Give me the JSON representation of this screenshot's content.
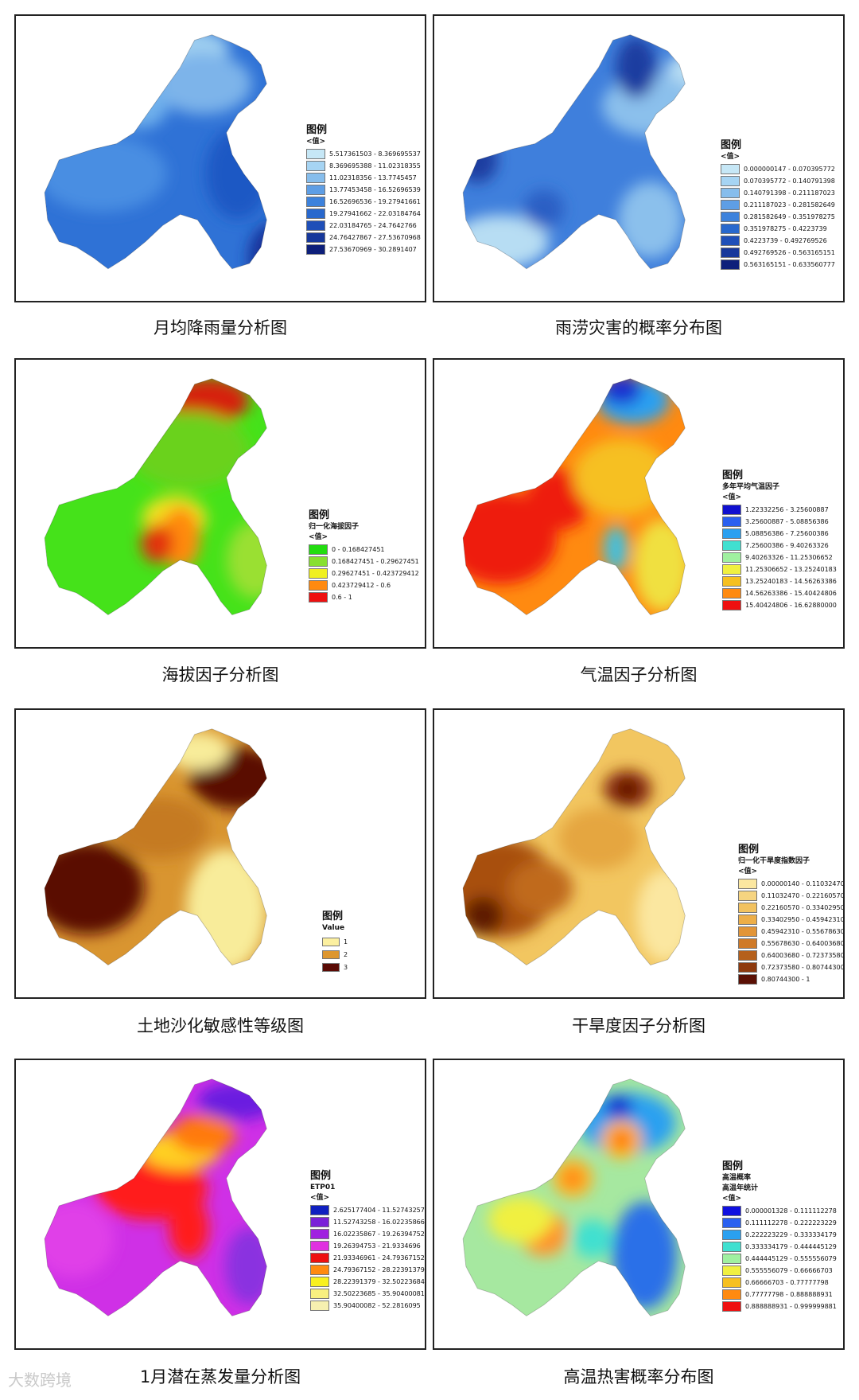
{
  "watermark": "大数跨境",
  "panels": [
    {
      "id": "p1",
      "caption": "月均降雨量分析图",
      "legend_title": "图例",
      "legend_sub": "<值>",
      "base": "#2f72d6",
      "blobs": [
        [
          "#9fcff0",
          0.55,
          0.09,
          0.1,
          0.05
        ],
        [
          "#7db4ea",
          0.6,
          0.22,
          0.12,
          0.08
        ],
        [
          "#4a8ee2",
          0.25,
          0.55,
          0.16,
          0.1
        ],
        [
          "#1f58c4",
          0.72,
          0.55,
          0.08,
          0.12
        ],
        [
          "#13309a",
          0.84,
          0.86,
          0.06,
          0.09
        ],
        [
          "#6fb0ec",
          0.38,
          0.3,
          0.07,
          0.06
        ]
      ],
      "legend": [
        {
          "color": "#c6e7f6",
          "label": "5.517361503 - 8.369695537"
        },
        {
          "color": "#a6d4f3",
          "label": "8.369695388 - 11.02318355"
        },
        {
          "color": "#86bdec",
          "label": "11.02318356 - 13.7745457"
        },
        {
          "color": "#5e9ee5",
          "label": "13.77453458 - 16.52696539"
        },
        {
          "color": "#3d82dc",
          "label": "16.52696536 - 19.27941661"
        },
        {
          "color": "#2868cd",
          "label": "19.27941662 - 22.03184764"
        },
        {
          "color": "#1f4fb8",
          "label": "22.03184765 - 24.7642766"
        },
        {
          "color": "#17389b",
          "label": "24.76427867 - 27.53670968"
        },
        {
          "color": "#0d1f7a",
          "label": "27.53670969 - 30.2891407"
        }
      ]
    },
    {
      "id": "p2",
      "caption": "雨涝灾害的概率分布图",
      "legend_title": "图例",
      "legend_sub": "<值>",
      "base": "#3f7fdc",
      "blobs": [
        [
          "#b7ddf3",
          0.82,
          0.18,
          0.05,
          0.05
        ],
        [
          "#8bc0ec",
          0.7,
          0.3,
          0.12,
          0.08
        ],
        [
          "#b7ddf3",
          0.18,
          0.8,
          0.12,
          0.07
        ],
        [
          "#2a5fc4",
          0.33,
          0.68,
          0.05,
          0.05
        ],
        [
          "#1b3ea0",
          0.1,
          0.5,
          0.05,
          0.06
        ],
        [
          "#1b3ea0",
          0.65,
          0.16,
          0.05,
          0.08
        ],
        [
          "#8bc0ec",
          0.7,
          0.72,
          0.08,
          0.1
        ]
      ],
      "legend": [
        {
          "color": "#c6e7f6",
          "label": "0.000000147 - 0.070395772"
        },
        {
          "color": "#a6d4f3",
          "label": "0.070395772 - 0.140791398"
        },
        {
          "color": "#86bdec",
          "label": "0.140791398 - 0.211187023"
        },
        {
          "color": "#5e9ee5",
          "label": "0.211187023 - 0.281582649"
        },
        {
          "color": "#3d82dc",
          "label": "0.281582649 - 0.351978275"
        },
        {
          "color": "#2868cd",
          "label": "0.351978275 - 0.4223739"
        },
        {
          "color": "#1f4fb8",
          "label": "0.4223739 - 0.492769526"
        },
        {
          "color": "#17389b",
          "label": "0.492769526 - 0.563165151"
        },
        {
          "color": "#0d1f7a",
          "label": "0.563165151 - 0.633560777"
        }
      ]
    },
    {
      "id": "p3",
      "caption": "海拔因子分析图",
      "legend_title": "图例",
      "legend_sub": "归一化海拔因子",
      "legend_sub2": "<值>",
      "base": "#45e21a",
      "blobs": [
        [
          "#d62010",
          0.62,
          0.12,
          0.1,
          0.06
        ],
        [
          "#6ad21a",
          0.55,
          0.3,
          0.15,
          0.1
        ],
        [
          "#f0e020",
          0.5,
          0.55,
          0.08,
          0.06
        ],
        [
          "#ff8a10",
          0.52,
          0.62,
          0.05,
          0.08
        ],
        [
          "#e23010",
          0.44,
          0.64,
          0.04,
          0.05
        ],
        [
          "#9ae030",
          0.78,
          0.7,
          0.07,
          0.1
        ]
      ],
      "legend": [
        {
          "color": "#22dd10",
          "label": "0 - 0.168427451"
        },
        {
          "color": "#88e030",
          "label": "0.168427451 - 0.29627451"
        },
        {
          "color": "#f0f020",
          "label": "0.29627451 - 0.423729412"
        },
        {
          "color": "#ff8a10",
          "label": "0.423729412 - 0.6"
        },
        {
          "color": "#ee1010",
          "label": "0.6 - 1"
        }
      ]
    },
    {
      "id": "p4",
      "caption": "气温因子分析图",
      "legend_title": "图例",
      "legend_sub": "多年平均气温因子",
      "legend_sub2": "<值>",
      "base": "#ff8a10",
      "blobs": [
        [
          "#ee1a10",
          0.18,
          0.62,
          0.14,
          0.12
        ],
        [
          "#ee1a10",
          0.38,
          0.48,
          0.08,
          0.08
        ],
        [
          "#f6c020",
          0.6,
          0.4,
          0.12,
          0.1
        ],
        [
          "#2aa0f0",
          0.64,
          0.12,
          0.09,
          0.06
        ],
        [
          "#1a30d0",
          0.6,
          0.08,
          0.05,
          0.04
        ],
        [
          "#f0e040",
          0.74,
          0.72,
          0.07,
          0.12
        ],
        [
          "#40c0e0",
          0.58,
          0.66,
          0.03,
          0.06
        ]
      ],
      "legend": [
        {
          "color": "#1010d0",
          "label": "1.22332256 - 3.25600887"
        },
        {
          "color": "#2a60f0",
          "label": "3.25600887 - 5.08856386"
        },
        {
          "color": "#2aa0f0",
          "label": "5.08856386 - 7.25600386"
        },
        {
          "color": "#40e0d0",
          "label": "7.25600386 - 9.40263326"
        },
        {
          "color": "#a0f0a0",
          "label": "9.40263326 - 11.25306652"
        },
        {
          "color": "#f0f040",
          "label": "11.25306652 - 13.25240183"
        },
        {
          "color": "#f6c020",
          "label": "13.25240183 - 14.56263386"
        },
        {
          "color": "#ff8a10",
          "label": "14.56263386 - 15.40424806"
        },
        {
          "color": "#ee1010",
          "label": "15.40424806 - 16.62880000"
        }
      ]
    },
    {
      "id": "p5",
      "caption": "土地沙化敏感性等级图",
      "legend_title": "图例",
      "legend_sub": "Value",
      "base": "#d99530",
      "blobs": [
        [
          "#5a0a04",
          0.2,
          0.62,
          0.14,
          0.12
        ],
        [
          "#5a0a04",
          0.72,
          0.22,
          0.12,
          0.08
        ],
        [
          "#f8ec9a",
          0.68,
          0.7,
          0.1,
          0.16
        ],
        [
          "#f8ec9a",
          0.58,
          0.12,
          0.08,
          0.05
        ],
        [
          "#c57a20",
          0.45,
          0.4,
          0.12,
          0.08
        ]
      ],
      "legend": [
        {
          "color": "#fcf0a0",
          "label": "1"
        },
        {
          "color": "#dd962e",
          "label": "2"
        },
        {
          "color": "#5a0a04",
          "label": "3"
        }
      ]
    },
    {
      "id": "p6",
      "caption": "干旱度因子分析图",
      "legend_title": "图例",
      "legend_sub": "归一化干旱度指数因子",
      "legend_sub2": "<值>",
      "base": "#f2c660",
      "blobs": [
        [
          "#a8500f",
          0.18,
          0.62,
          0.14,
          0.13
        ],
        [
          "#5e1a06",
          0.12,
          0.72,
          0.05,
          0.05
        ],
        [
          "#c06a1a",
          0.32,
          0.62,
          0.08,
          0.07
        ],
        [
          "#8a2d08",
          0.62,
          0.26,
          0.06,
          0.05
        ],
        [
          "#5a0e04",
          0.62,
          0.26,
          0.025,
          0.025
        ],
        [
          "#fbe7a0",
          0.75,
          0.72,
          0.07,
          0.12
        ],
        [
          "#e5a640",
          0.52,
          0.44,
          0.1,
          0.08
        ]
      ],
      "legend": [
        {
          "color": "#fbe7a0",
          "label": "0.00000140 - 0.11032470"
        },
        {
          "color": "#f6d480",
          "label": "0.11032470 - 0.22160570"
        },
        {
          "color": "#f2c260",
          "label": "0.22160570 - 0.33402950"
        },
        {
          "color": "#edae48",
          "label": "0.33402950 - 0.45942310"
        },
        {
          "color": "#e29538",
          "label": "0.45942310 - 0.55678630"
        },
        {
          "color": "#cf7a28",
          "label": "0.55678630 - 0.64003680"
        },
        {
          "color": "#b5601c",
          "label": "0.64003680 - 0.72373580"
        },
        {
          "color": "#8e3a0e",
          "label": "0.72373580 - 0.80744300"
        },
        {
          "color": "#5a1004",
          "label": "0.80744300 - 1"
        }
      ]
    },
    {
      "id": "p7",
      "caption": "1月潜在蒸发量分析图",
      "legend_title": "图例",
      "legend_sub": "ETP01",
      "legend_sub2": "<值>",
      "base": "#cf30e6",
      "blobs": [
        [
          "#ff1a1a",
          0.42,
          0.44,
          0.14,
          0.08
        ],
        [
          "#ffd020",
          0.52,
          0.3,
          0.1,
          0.05
        ],
        [
          "#ff7a10",
          0.6,
          0.24,
          0.08,
          0.05
        ],
        [
          "#6a1ce0",
          0.72,
          0.12,
          0.1,
          0.05
        ],
        [
          "#ff1a1a",
          0.55,
          0.58,
          0.05,
          0.08
        ],
        [
          "#e040e8",
          0.15,
          0.62,
          0.1,
          0.1
        ],
        [
          "#8a30e0",
          0.76,
          0.72,
          0.06,
          0.1
        ]
      ],
      "legend": [
        {
          "color": "#1020c0",
          "label": "2.625177404 - 11.52743257"
        },
        {
          "color": "#7a20d8",
          "label": "11.52743258 - 16.02235866"
        },
        {
          "color": "#a020e0",
          "label": "16.02235867 - 19.26394752"
        },
        {
          "color": "#e030e0",
          "label": "19.26394753 - 21.9334696"
        },
        {
          "color": "#ee1010",
          "label": "21.93346961 - 24.79367152"
        },
        {
          "color": "#ff8a10",
          "label": "24.79367152 - 28.22391379"
        },
        {
          "color": "#f8f020",
          "label": "28.22391379 - 32.50223684"
        },
        {
          "color": "#f8f080",
          "label": "32.50223685 - 35.90400081"
        },
        {
          "color": "#f6f0b0",
          "label": "35.90400082 - 52.2816095"
        }
      ]
    },
    {
      "id": "p8",
      "caption": "高温热害概率分布图",
      "legend_title": "图例",
      "legend_sub": "高温概率",
      "legend_sub2": "高温年统计",
      "legend_sub3": "<值>",
      "base": "#a6e8a0",
      "blobs": [
        [
          "#2aa0f0",
          0.62,
          0.2,
          0.12,
          0.08
        ],
        [
          "#1430d0",
          0.59,
          0.14,
          0.035,
          0.03
        ],
        [
          "#ffb020",
          0.6,
          0.26,
          0.05,
          0.05
        ],
        [
          "#ff2a10",
          0.6,
          0.26,
          0.018,
          0.018
        ],
        [
          "#ffb020",
          0.43,
          0.4,
          0.05,
          0.05
        ],
        [
          "#ff2a10",
          0.43,
          0.4,
          0.015,
          0.015
        ],
        [
          "#ff9a30",
          0.33,
          0.6,
          0.06,
          0.06
        ],
        [
          "#ff3010",
          0.33,
          0.6,
          0.02,
          0.02
        ],
        [
          "#2a70e8",
          0.68,
          0.68,
          0.08,
          0.14
        ],
        [
          "#40e0d0",
          0.5,
          0.62,
          0.05,
          0.05
        ],
        [
          "#f0f040",
          0.25,
          0.55,
          0.08,
          0.06
        ]
      ],
      "legend": [
        {
          "color": "#1010e0",
          "label": "0.000001328 - 0.111112278"
        },
        {
          "color": "#2a60f0",
          "label": "0.111112278 - 0.222223229"
        },
        {
          "color": "#2aa0f0",
          "label": "0.222223229 - 0.333334179"
        },
        {
          "color": "#40e0d0",
          "label": "0.333334179 - 0.444445129"
        },
        {
          "color": "#a0f0a0",
          "label": "0.444445129 - 0.555556079"
        },
        {
          "color": "#f0f040",
          "label": "0.555556079 - 0.66666703"
        },
        {
          "color": "#f6c020",
          "label": "0.66666703 - 0.77777798"
        },
        {
          "color": "#ff8a10",
          "label": "0.77777798 - 0.888888931"
        },
        {
          "color": "#ee1010",
          "label": "0.888888931 - 0.999999881"
        }
      ]
    }
  ]
}
